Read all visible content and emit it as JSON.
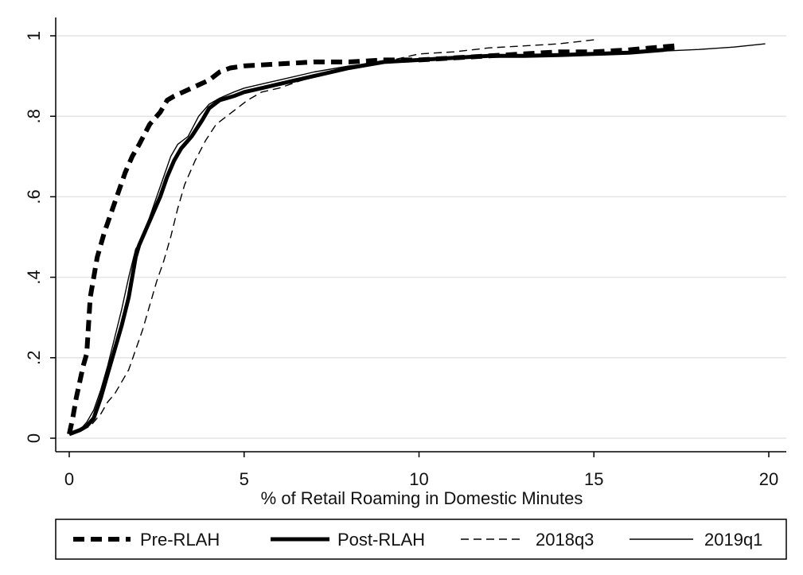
{
  "chart_data": {
    "type": "line",
    "title": "",
    "xlabel": "% of Retail Roaming in Domestic Minutes",
    "ylabel": "",
    "xlim": [
      0,
      20
    ],
    "ylim": [
      0,
      1
    ],
    "x_ticks": [
      0,
      5,
      10,
      15,
      20
    ],
    "x_tick_labels": [
      "0",
      "5",
      "10",
      "15",
      "20"
    ],
    "y_ticks": [
      0,
      0.2,
      0.4,
      0.6,
      0.8,
      1
    ],
    "y_tick_labels": [
      "0",
      ".2",
      ".4",
      ".6",
      ".8",
      "1"
    ],
    "grid": "horizontal",
    "legend_position": "bottom",
    "series": [
      {
        "name": "Pre-RLAH",
        "style": "thick-dashed",
        "color": "#000000",
        "points": [
          [
            0,
            0.01
          ],
          [
            0.1,
            0.05
          ],
          [
            0.2,
            0.1
          ],
          [
            0.3,
            0.14
          ],
          [
            0.4,
            0.18
          ],
          [
            0.5,
            0.21
          ],
          [
            0.55,
            0.28
          ],
          [
            0.6,
            0.35
          ],
          [
            0.7,
            0.4
          ],
          [
            0.8,
            0.45
          ],
          [
            0.9,
            0.48
          ],
          [
            1.0,
            0.51
          ],
          [
            1.2,
            0.56
          ],
          [
            1.4,
            0.61
          ],
          [
            1.6,
            0.66
          ],
          [
            1.8,
            0.7
          ],
          [
            2.0,
            0.73
          ],
          [
            2.3,
            0.78
          ],
          [
            2.6,
            0.81
          ],
          [
            2.8,
            0.84
          ],
          [
            3.0,
            0.85
          ],
          [
            3.5,
            0.87
          ],
          [
            4.0,
            0.89
          ],
          [
            4.3,
            0.91
          ],
          [
            4.6,
            0.92
          ],
          [
            5.0,
            0.925
          ],
          [
            6.0,
            0.93
          ],
          [
            7.0,
            0.935
          ],
          [
            8.0,
            0.935
          ],
          [
            9.0,
            0.94
          ],
          [
            10.0,
            0.94
          ],
          [
            11.0,
            0.945
          ],
          [
            12.0,
            0.95
          ],
          [
            13.0,
            0.955
          ],
          [
            14.0,
            0.96
          ],
          [
            15.0,
            0.96
          ],
          [
            16.0,
            0.965
          ],
          [
            17.3,
            0.975
          ]
        ]
      },
      {
        "name": "Post-RLAH",
        "style": "thick-solid",
        "color": "#000000",
        "points": [
          [
            0,
            0.01
          ],
          [
            0.3,
            0.02
          ],
          [
            0.5,
            0.03
          ],
          [
            0.7,
            0.05
          ],
          [
            0.9,
            0.1
          ],
          [
            1.1,
            0.16
          ],
          [
            1.3,
            0.22
          ],
          [
            1.5,
            0.28
          ],
          [
            1.7,
            0.35
          ],
          [
            1.8,
            0.4
          ],
          [
            1.9,
            0.45
          ],
          [
            2.0,
            0.48
          ],
          [
            2.2,
            0.52
          ],
          [
            2.4,
            0.56
          ],
          [
            2.6,
            0.6
          ],
          [
            2.8,
            0.65
          ],
          [
            3.0,
            0.69
          ],
          [
            3.2,
            0.72
          ],
          [
            3.5,
            0.75
          ],
          [
            3.8,
            0.79
          ],
          [
            4.0,
            0.82
          ],
          [
            4.3,
            0.84
          ],
          [
            4.7,
            0.85
          ],
          [
            5.0,
            0.86
          ],
          [
            5.5,
            0.87
          ],
          [
            6.0,
            0.88
          ],
          [
            7.0,
            0.9
          ],
          [
            8.0,
            0.92
          ],
          [
            9.0,
            0.935
          ],
          [
            10.0,
            0.94
          ],
          [
            11.0,
            0.945
          ],
          [
            12.0,
            0.95
          ],
          [
            13.0,
            0.95
          ],
          [
            14.0,
            0.952
          ],
          [
            15.0,
            0.955
          ],
          [
            16.0,
            0.958
          ],
          [
            17.0,
            0.965
          ],
          [
            17.3,
            0.97
          ]
        ]
      },
      {
        "name": "2018q3",
        "style": "thin-dashed",
        "color": "#000000",
        "points": [
          [
            0,
            0.01
          ],
          [
            0.3,
            0.02
          ],
          [
            0.6,
            0.03
          ],
          [
            0.9,
            0.06
          ],
          [
            1.1,
            0.09
          ],
          [
            1.3,
            0.11
          ],
          [
            1.5,
            0.14
          ],
          [
            1.7,
            0.17
          ],
          [
            1.9,
            0.22
          ],
          [
            2.1,
            0.27
          ],
          [
            2.3,
            0.33
          ],
          [
            2.5,
            0.39
          ],
          [
            2.7,
            0.44
          ],
          [
            2.9,
            0.5
          ],
          [
            3.1,
            0.57
          ],
          [
            3.3,
            0.63
          ],
          [
            3.6,
            0.69
          ],
          [
            3.9,
            0.74
          ],
          [
            4.2,
            0.78
          ],
          [
            4.5,
            0.8
          ],
          [
            4.8,
            0.82
          ],
          [
            5.1,
            0.84
          ],
          [
            5.5,
            0.86
          ],
          [
            6.0,
            0.87
          ],
          [
            7.0,
            0.9
          ],
          [
            8.0,
            0.92
          ],
          [
            9.0,
            0.935
          ],
          [
            10.0,
            0.955
          ],
          [
            11.0,
            0.96
          ],
          [
            12.0,
            0.97
          ],
          [
            13.0,
            0.975
          ],
          [
            14.0,
            0.98
          ],
          [
            15.0,
            0.99
          ]
        ]
      },
      {
        "name": "2019q1",
        "style": "thin-solid",
        "color": "#000000",
        "points": [
          [
            0,
            0.01
          ],
          [
            0.3,
            0.02
          ],
          [
            0.5,
            0.04
          ],
          [
            0.7,
            0.07
          ],
          [
            0.9,
            0.12
          ],
          [
            1.1,
            0.18
          ],
          [
            1.3,
            0.25
          ],
          [
            1.5,
            0.32
          ],
          [
            1.7,
            0.4
          ],
          [
            1.9,
            0.47
          ],
          [
            2.1,
            0.5
          ],
          [
            2.3,
            0.55
          ],
          [
            2.5,
            0.6
          ],
          [
            2.7,
            0.65
          ],
          [
            2.9,
            0.7
          ],
          [
            3.1,
            0.73
          ],
          [
            3.4,
            0.75
          ],
          [
            3.7,
            0.8
          ],
          [
            4.0,
            0.83
          ],
          [
            4.3,
            0.845
          ],
          [
            4.7,
            0.86
          ],
          [
            5.0,
            0.87
          ],
          [
            5.5,
            0.88
          ],
          [
            6.0,
            0.89
          ],
          [
            7.0,
            0.91
          ],
          [
            8.0,
            0.925
          ],
          [
            9.0,
            0.935
          ],
          [
            10.0,
            0.94
          ],
          [
            11.0,
            0.945
          ],
          [
            12.0,
            0.95
          ],
          [
            13.0,
            0.952
          ],
          [
            14.0,
            0.955
          ],
          [
            15.0,
            0.958
          ],
          [
            16.0,
            0.96
          ],
          [
            17.0,
            0.962
          ],
          [
            18.0,
            0.966
          ],
          [
            19.0,
            0.972
          ],
          [
            19.9,
            0.98
          ]
        ]
      }
    ]
  }
}
